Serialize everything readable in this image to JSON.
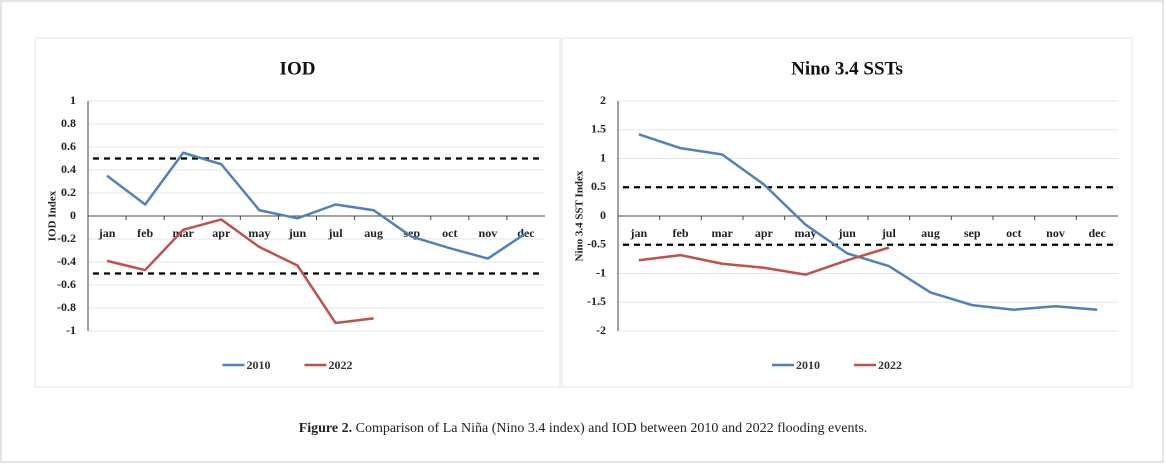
{
  "chart_data": [
    {
      "type": "line",
      "title": "IOD",
      "y_label": "IOD Index",
      "categories": [
        "jan",
        "feb",
        "mar",
        "apr",
        "may",
        "jun",
        "jul",
        "aug",
        "sep",
        "oct",
        "nov",
        "dec"
      ],
      "series": [
        {
          "name": "2010",
          "color": "#4f81bd",
          "values": [
            0.35,
            0.1,
            0.55,
            0.45,
            0.05,
            -0.02,
            0.1,
            0.05,
            -0.18,
            -0.28,
            -0.37,
            -0.15
          ]
        },
        {
          "name": "2022",
          "color": "#c0504d",
          "values": [
            -0.39,
            -0.47,
            -0.12,
            -0.03,
            -0.27,
            -0.43,
            -0.93,
            -0.89,
            null,
            null,
            null,
            null
          ]
        }
      ],
      "reference_lines": [
        0.5,
        -0.5
      ],
      "ylim": [
        -1,
        1
      ],
      "yticks": [
        -1,
        -0.8,
        -0.6,
        -0.4,
        -0.2,
        0,
        0.2,
        0.4,
        0.6,
        0.8,
        1
      ],
      "grid": true
    },
    {
      "type": "line",
      "title": "Nino 3.4 SSTs",
      "y_label": "Nino 3.4 SST Index",
      "categories": [
        "jan",
        "feb",
        "mar",
        "apr",
        "may",
        "jun",
        "jul",
        "aug",
        "sep",
        "oct",
        "nov",
        "dec"
      ],
      "series": [
        {
          "name": "2010",
          "color": "#4f81bd",
          "values": [
            1.42,
            1.18,
            1.07,
            0.55,
            -0.15,
            -0.65,
            -0.87,
            -1.33,
            -1.55,
            -1.63,
            -1.57,
            -1.63
          ]
        },
        {
          "name": "2022",
          "color": "#c0504d",
          "values": [
            -0.77,
            -0.68,
            -0.83,
            -0.9,
            -1.02,
            -0.77,
            -0.55,
            null,
            null,
            null,
            null,
            null
          ]
        }
      ],
      "reference_lines": [
        0.5,
        -0.5
      ],
      "ylim": [
        -2,
        2
      ],
      "yticks": [
        -2,
        -1.5,
        -1,
        -0.5,
        0,
        0.5,
        1,
        1.5,
        2
      ],
      "grid": true
    }
  ],
  "caption": {
    "label": "Figure 2.",
    "text": "Comparison of La Niña (Nino 3.4 index) and IOD between 2010 and 2022 flooding events."
  }
}
